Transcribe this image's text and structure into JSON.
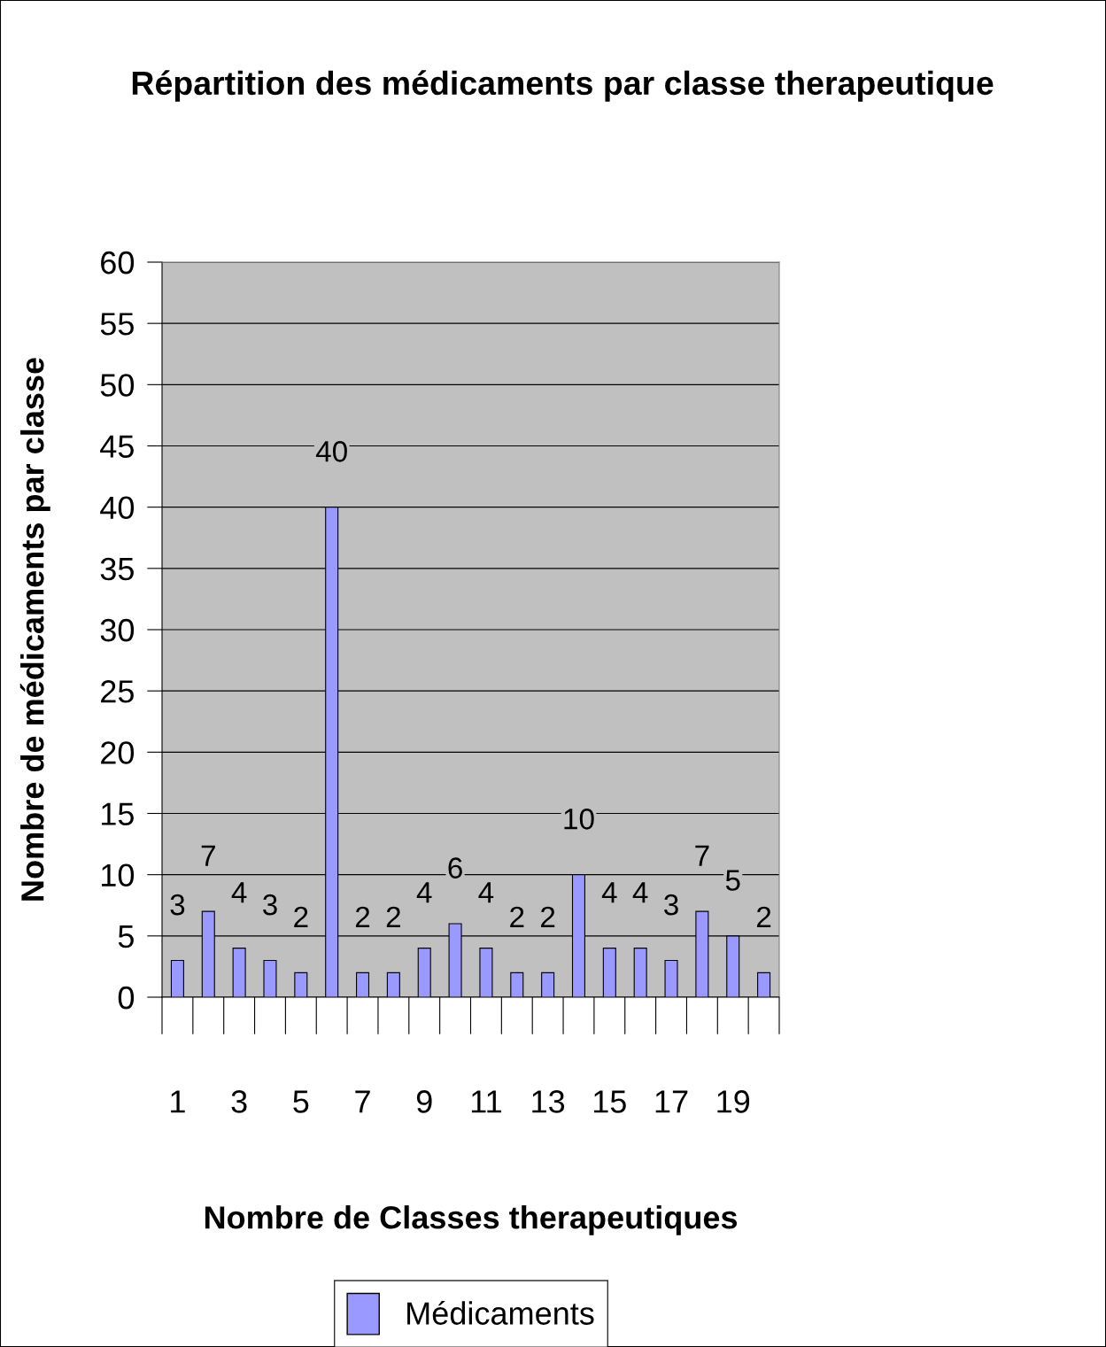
{
  "chart_data": {
    "type": "bar",
    "title": "Répartition des médicaments par classe therapeutique",
    "xlabel": "Nombre de Classes therapeutiques",
    "ylabel": "Nombre de médicaments par classe",
    "categories": [
      "1",
      null,
      "3",
      null,
      "5",
      null,
      "7",
      null,
      "9",
      null,
      "11",
      null,
      "13",
      null,
      "15",
      null,
      "17",
      null,
      "19",
      null
    ],
    "series": [
      {
        "name": "Médicaments",
        "color": "#9999ff",
        "values": [
          3,
          7,
          4,
          3,
          2,
          40,
          2,
          2,
          4,
          6,
          4,
          2,
          2,
          10,
          4,
          4,
          3,
          7,
          5,
          2
        ]
      }
    ],
    "ylim": [
      0,
      60
    ],
    "yticks": [
      0,
      5,
      10,
      15,
      20,
      25,
      30,
      35,
      40,
      45,
      50,
      55,
      60
    ],
    "grid": "y",
    "data_labels": true,
    "legend": "bottom"
  }
}
